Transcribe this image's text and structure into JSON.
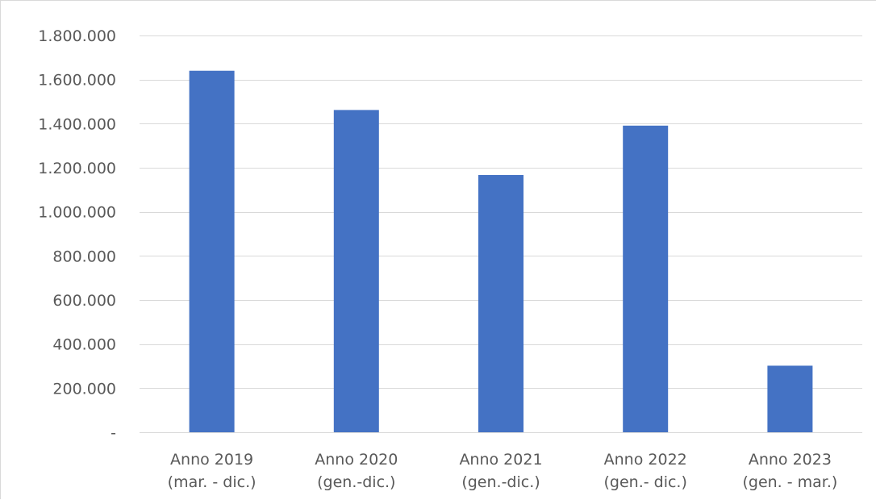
{
  "chart_data": {
    "type": "bar",
    "title": "",
    "xlabel": "",
    "ylabel": "",
    "categories": [
      [
        "Anno 2019",
        "(mar. - dic.)"
      ],
      [
        "Anno 2020",
        "(gen.-dic.)"
      ],
      [
        "Anno 2021",
        "(gen.-dic.)"
      ],
      [
        "Anno 2022",
        "(gen.- dic.)"
      ],
      [
        "Anno 2023",
        "(gen. - mar.)"
      ]
    ],
    "values": [
      1640000,
      1462000,
      1167000,
      1391000,
      302000
    ],
    "ylim": [
      0,
      1800000
    ],
    "ytick_values": [
      0,
      200000,
      400000,
      600000,
      800000,
      1000000,
      1200000,
      1400000,
      1600000,
      1800000
    ],
    "ytick_labels": [
      "-",
      "200.000",
      "400.000",
      "600.000",
      "800.000",
      "1.000.000",
      "1.200.000",
      "1.400.000",
      "1.600.000",
      "1.800.000"
    ],
    "grid": true,
    "colors": {
      "bar": "#4472C4",
      "grid": "#d9d9d9",
      "text": "#595959"
    }
  }
}
